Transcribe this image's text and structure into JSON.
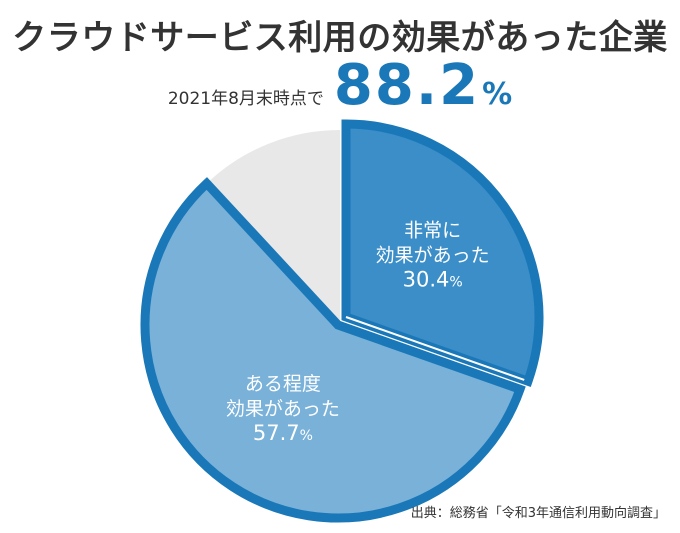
{
  "title": "クラウドサービス利用の効果があった企業",
  "subtitle": {
    "date_label": "2021年8月末時点で",
    "value": "88.2",
    "unit": "%"
  },
  "source": "出典：総務省「令和3年通信利用動向調査」",
  "colors": {
    "very_effective": "#3b8ec8",
    "somewhat_effective": "#79b1d9",
    "other": "#e8e8e8",
    "accent_border": "#1a78b8"
  },
  "chart_data": {
    "type": "pie",
    "slices": [
      {
        "label_lines": [
          "非常に",
          "効果があった"
        ],
        "value": 30.4,
        "value_text": "30.4",
        "unit": "%",
        "color": "#3b8ec8",
        "highlight": true
      },
      {
        "label_lines": [
          "ある程度",
          "効果があった"
        ],
        "value": 57.7,
        "value_text": "57.7",
        "unit": "%",
        "color": "#79b1d9",
        "highlight": true
      },
      {
        "label_lines": [],
        "value": 11.9,
        "value_text": "",
        "unit": "",
        "color": "#e8e8e8",
        "highlight": false
      }
    ],
    "start_angle_deg": 0,
    "direction": "clockwise"
  }
}
